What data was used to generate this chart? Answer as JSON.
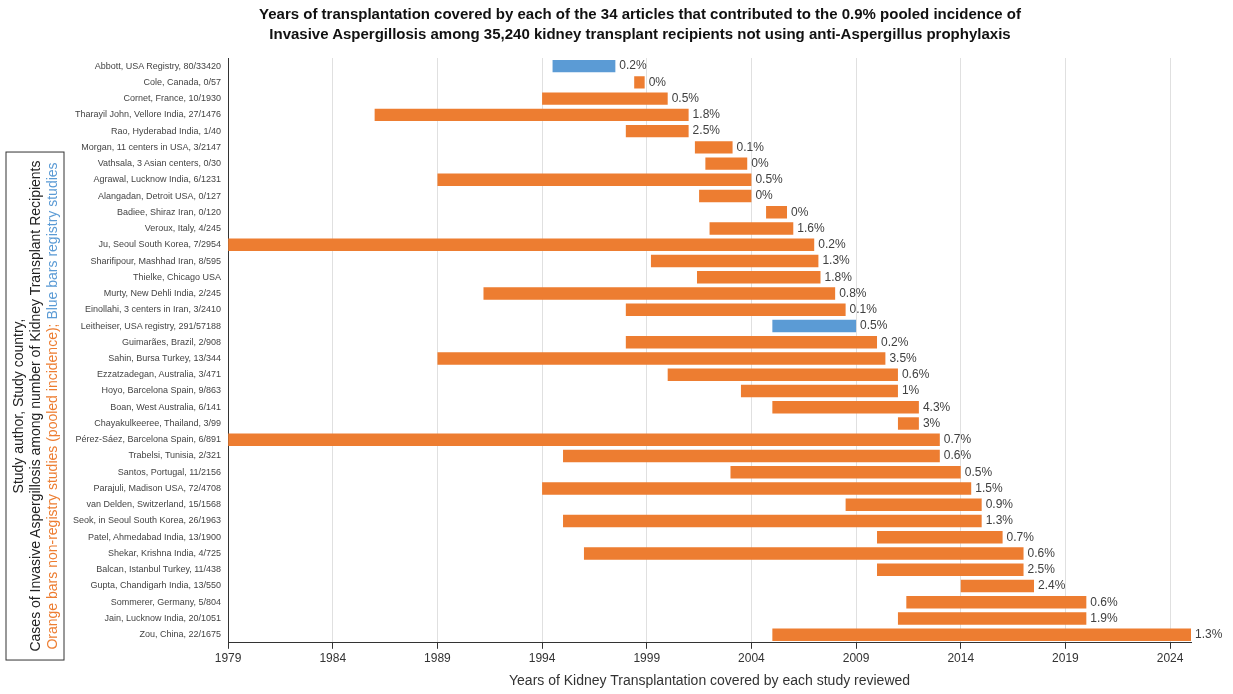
{
  "chart_data": {
    "type": "bar",
    "orientation": "horizontal",
    "title": "Years of transplantation covered by each of the 34 articles that contributed to the 0.9% pooled incidence of Invasive Aspergillosis among 35,240 kidney transplant recipients not using anti-Aspergillus prophylaxis",
    "xlabel": "Years of Kidney Transplantation covered by each study reviewed",
    "ylabel": "Study author, Study country,\nCases of Invasive Aspergillosis among number of Kidney Transplant Recipients",
    "annotations": [
      "Orange bars non-registry studies (pooled incidence);",
      "Blue bars registry studies",
      {
        "text": "0.2%",
        "x": 1997.5,
        "y": "Abbott, USA Registry, 80/33420"
      },
      {
        "text": "0%",
        "x": 1998.9,
        "y": "Cole, Canada, 0/57"
      },
      {
        "text": "0.5%",
        "x": 2000,
        "y": "Cornet, France, 10/1930"
      },
      {
        "text": "1.8%",
        "x": 2001,
        "y": "Tharayil John, Vellore India, 27/1476"
      },
      {
        "text": "2.5%",
        "x": 2001,
        "y": "Rao, Hyderabad India, 1/40"
      },
      {
        "text": "0.1%",
        "x": 2003.1,
        "y": "Morgan, 11 centers in USA, 3/2147"
      },
      {
        "text": "0%",
        "x": 2003.8,
        "y": "Vathsala, 3 Asian centers, 0/30"
      },
      {
        "text": "0.5%",
        "x": 2004,
        "y": "Agrawal, Lucknow India, 6/1231"
      },
      {
        "text": "0%",
        "x": 2004,
        "y": "Alangadan, Detroit USA, 0/127"
      },
      {
        "text": "0%",
        "x": 2005.7,
        "y": "Badiee, Shiraz Iran, 0/120"
      },
      {
        "text": "1.6%",
        "x": 2006,
        "y": "Veroux, Italy, 4/245"
      },
      {
        "text": "0.2%",
        "x": 2007,
        "y": "Ju, Seoul South Korea, 7/2954"
      },
      {
        "text": "1.3%",
        "x": 2007.2,
        "y": "Sharifipour, Mashhad Iran, 8/595"
      },
      {
        "text": "1.8%",
        "x": 2007.3,
        "y": "Thielke, Chicago USA"
      },
      {
        "text": "0.8%",
        "x": 2008,
        "y": "Murty, New Dehli India, 2/245"
      },
      {
        "text": "0.1%",
        "x": 2008.5,
        "y": "Einollahi, 3 centers in Iran, 3/2410"
      },
      {
        "text": "0.5%",
        "x": 2009,
        "y": "Leitheiser, USA registry, 291/57188"
      },
      {
        "text": "0.2%",
        "x": 2010,
        "y": "Guimarães, Brazil, 2/908"
      },
      {
        "text": "3.5%",
        "x": 2010.4,
        "y": "Sahin, Bursa Turkey, 13/344"
      },
      {
        "text": "0.6%",
        "x": 2011,
        "y": "Ezzatzadegan, Australia, 3/471"
      },
      {
        "text": "1%",
        "x": 2011,
        "y": "Hoyo, Barcelona Spain, 9/863"
      },
      {
        "text": "4.3%",
        "x": 2012,
        "y": "Boan, West Australia, 6/141"
      },
      {
        "text": "3%",
        "x": 2012,
        "y": "Chayakulkeeree, Thailand, 3/99"
      },
      {
        "text": "0.7%",
        "x": 2013,
        "y": "Pérez-Sáez, Barcelona Spain, 6/891"
      },
      {
        "text": "0.6%",
        "x": 2013,
        "y": "Trabelsi, Tunisia, 2/321"
      },
      {
        "text": "0.5%",
        "x": 2014,
        "y": "Santos, Portugal, 11/2156"
      },
      {
        "text": "1.5%",
        "x": 2014.5,
        "y": "Parajuli, Madison USA, 72/4708"
      },
      {
        "text": "0.9%",
        "x": 2015,
        "y": "van Delden, Switzerland, 15/1568"
      },
      {
        "text": "1.3%",
        "x": 2015,
        "y": "Seok, in Seoul South Korea, 26/1963"
      },
      {
        "text": "0.7%",
        "x": 2016,
        "y": "Patel, Ahmedabad India, 13/1900"
      },
      {
        "text": "0.6%",
        "x": 2017,
        "y": "Shekar, Krishna India, 4/725"
      },
      {
        "text": "2.5%",
        "x": 2017,
        "y": "Balcan, Istanbul Turkey, 11/438"
      },
      {
        "text": "2.4%",
        "x": 2017.5,
        "y": "Gupta, Chandigarh India, 13/550"
      },
      {
        "text": "0.6%",
        "x": 2020,
        "y": "Sommerer, Germany, 5/804"
      },
      {
        "text": "1.9%",
        "x": 2020,
        "y": "Jain, Lucknow India, 20/1051"
      },
      {
        "text": "1.3%",
        "x": 2025,
        "y": "Zou, China, 22/1675"
      }
    ],
    "categories": [
      "Abbott, USA Registry, 80/33420",
      "Cole, Canada, 0/57",
      "Cornet, France, 10/1930",
      "Tharayil John, Vellore India, 27/1476",
      "Rao, Hyderabad India, 1/40",
      "Morgan, 11 centers in USA, 3/2147",
      "Vathsala, 3 Asian centers, 0/30",
      "Agrawal, Lucknow India, 6/1231",
      "Alangadan, Detroit USA, 0/127",
      "Badiee, Shiraz Iran, 0/120",
      "Veroux, Italy, 4/245",
      "Ju, Seoul South Korea, 7/2954",
      "Sharifipour, Mashhad Iran, 8/595",
      "Thielke, Chicago USA",
      "Murty, New Dehli India, 2/245",
      "Einollahi, 3 centers in Iran, 3/2410",
      "Leitheiser, USA registry, 291/57188",
      "Guimarães, Brazil, 2/908",
      "Sahin, Bursa Turkey, 13/344",
      "Ezzatzadegan, Australia, 3/471",
      "Hoyo, Barcelona Spain, 9/863",
      "Boan, West Australia, 6/141",
      "Chayakulkeeree, Thailand, 3/99",
      "Pérez-Sáez, Barcelona Spain, 6/891",
      "Trabelsi, Tunisia, 2/321",
      "Santos, Portugal, 11/2156",
      "Parajuli, Madison USA, 72/4708",
      "van Delden, Switzerland, 15/1568",
      "Seok, in Seoul South Korea, 26/1963",
      "Patel, Ahmedabad India, 13/1900",
      "Shekar, Krishna India, 4/725",
      "Balcan, Istanbul Turkey, 11/438",
      "Gupta, Chandigarh India, 13/550",
      "Sommerer, Germany, 5/804",
      "Jain, Lucknow India, 20/1051",
      "Zou, China, 22/1675"
    ],
    "base": [
      1994.5,
      1998.4,
      1994,
      1986,
      1998,
      2001.3,
      2001.8,
      1989,
      2001.5,
      2004.7,
      2002,
      1979,
      1999.2,
      2001.4,
      1991.2,
      1998,
      2005,
      1998,
      1989,
      2000,
      2003.5,
      2005,
      2011,
      1979,
      1995,
      2003,
      1994,
      2008.5,
      1995,
      2010,
      1996,
      2010,
      2014,
      2011.4,
      2011,
      2005
    ],
    "values": [
      3,
      0.5,
      6,
      15,
      3,
      1.8,
      2,
      15,
      2.5,
      1,
      4,
      28,
      8,
      5.9,
      16.8,
      10.5,
      4,
      12,
      21.4,
      11,
      7.5,
      7,
      1,
      34,
      18,
      11,
      20.5,
      6.5,
      20,
      6,
      21,
      7,
      3.5,
      8.6,
      9,
      20
    ],
    "colors": [
      "#5b9bd5",
      "#ed7d31",
      "#ed7d31",
      "#ed7d31",
      "#ed7d31",
      "#ed7d31",
      "#ed7d31",
      "#ed7d31",
      "#ed7d31",
      "#ed7d31",
      "#ed7d31",
      "#ed7d31",
      "#ed7d31",
      "#ed7d31",
      "#ed7d31",
      "#ed7d31",
      "#5b9bd5",
      "#ed7d31",
      "#ed7d31",
      "#ed7d31",
      "#ed7d31",
      "#ed7d31",
      "#ed7d31",
      "#ed7d31",
      "#ed7d31",
      "#ed7d31",
      "#ed7d31",
      "#ed7d31",
      "#ed7d31",
      "#ed7d31",
      "#ed7d31",
      "#ed7d31",
      "#ed7d31",
      "#ed7d31",
      "#ed7d31",
      "#ed7d31"
    ],
    "xlim": [
      1979,
      2025
    ],
    "xticks": [
      1979,
      1984,
      1989,
      1994,
      1999,
      2004,
      2009,
      2014,
      2019,
      2024
    ],
    "grid": "x",
    "legend": false
  }
}
